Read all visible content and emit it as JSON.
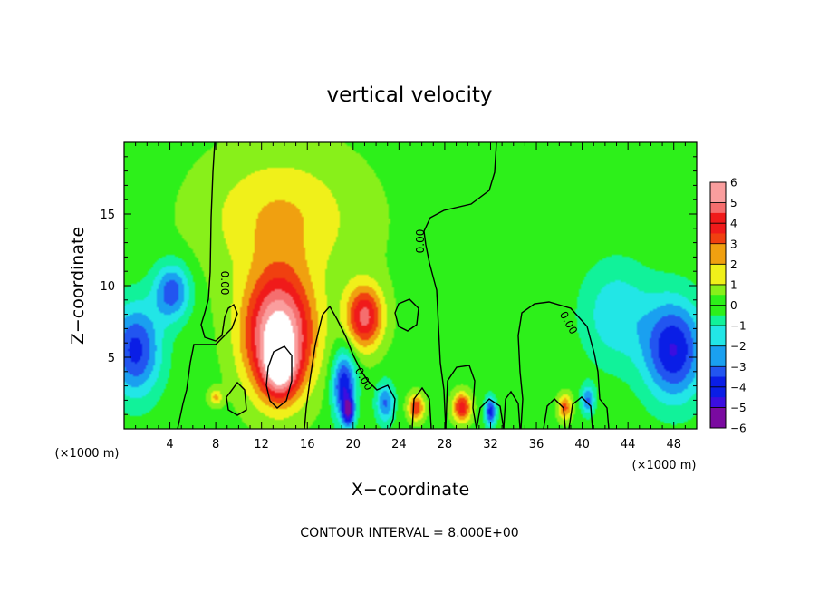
{
  "chart_data": {
    "type": "heatmap",
    "title": "vertical velocity",
    "xlabel": "X−coordinate",
    "ylabel": "Z−coordinate",
    "x_unit_left": "(×1000 m)",
    "x_unit_right": "(×1000 m)",
    "xlim": [
      0,
      50
    ],
    "ylim": [
      0,
      20
    ],
    "x_ticks": [
      4,
      8,
      12,
      16,
      20,
      24,
      28,
      32,
      36,
      40,
      44,
      48
    ],
    "y_ticks": [
      5,
      10,
      15
    ],
    "colorbar": {
      "ticks": [
        6,
        5,
        4,
        3,
        2,
        1,
        0,
        -1,
        -2,
        -3,
        -4,
        -5,
        -6
      ],
      "tick_labels": [
        "6",
        "5",
        "4",
        "3",
        "2",
        "1",
        "0",
        "−1",
        "−2",
        "−3",
        "−4",
        "−5",
        "−6"
      ],
      "range": [
        -6,
        6
      ]
    },
    "contour_level_labels": [
      "0.00",
      "0.00",
      "0.00",
      "0.00"
    ],
    "contour_interval_text": "CONTOUR INTERVAL = 8.000E+00",
    "features": [
      {
        "x": 13.5,
        "z": 6.5,
        "value": 6.5,
        "rx": 3.0,
        "rz": 4.2
      },
      {
        "x": 13.6,
        "z": 4.2,
        "value": 3.5,
        "rx": 1.4,
        "rz": 2.0
      },
      {
        "x": 21.0,
        "z": 7.8,
        "value": 4.5,
        "rx": 1.6,
        "rz": 2.2
      },
      {
        "x": 19.2,
        "z": 3.0,
        "value": -4.5,
        "rx": 1.0,
        "rz": 2.4
      },
      {
        "x": 19.6,
        "z": 1.2,
        "value": -4.0,
        "rx": 0.5,
        "rz": 1.0
      },
      {
        "x": 22.8,
        "z": 1.8,
        "value": -3.0,
        "rx": 0.8,
        "rz": 1.4
      },
      {
        "x": 1.0,
        "z": 5.5,
        "value": -4.0,
        "rx": 2.2,
        "rz": 3.2
      },
      {
        "x": 4.2,
        "z": 9.6,
        "value": -3.5,
        "rx": 1.6,
        "rz": 2.0
      },
      {
        "x": 48.0,
        "z": 5.5,
        "value": -4.5,
        "rx": 2.6,
        "rz": 3.5
      },
      {
        "x": 43.0,
        "z": 8.0,
        "value": -2.0,
        "rx": 3.0,
        "rz": 3.5
      },
      {
        "x": 25.5,
        "z": 1.5,
        "value": 3.5,
        "rx": 0.7,
        "rz": 0.9
      },
      {
        "x": 29.5,
        "z": 1.5,
        "value": 4.0,
        "rx": 0.8,
        "rz": 1.0
      },
      {
        "x": 32.0,
        "z": 1.2,
        "value": -4.0,
        "rx": 0.5,
        "rz": 1.0
      },
      {
        "x": 38.5,
        "z": 1.5,
        "value": 3.0,
        "rx": 0.6,
        "rz": 0.9
      },
      {
        "x": 40.5,
        "z": 2.0,
        "value": -3.0,
        "rx": 0.6,
        "rz": 1.0
      },
      {
        "x": 8.0,
        "z": 2.2,
        "value": 2.0,
        "rx": 0.6,
        "rz": 0.6
      },
      {
        "x": 13.5,
        "z": 15.0,
        "value": 1.2,
        "rx": 6.0,
        "rz": 4.0
      }
    ]
  },
  "colors": {
    "contour_line": "#000000",
    "colormap": [
      "#7a0aa0",
      "#3b0ee0",
      "#0a1ee6",
      "#2255f0",
      "#1aa0f0",
      "#22e6e6",
      "#11f29a",
      "#2df01a",
      "#88f01a",
      "#f0f01a",
      "#f0a010",
      "#f04010",
      "#f01a1a",
      "#f56e6e",
      "#fa9e9e",
      "#ffffff"
    ]
  }
}
